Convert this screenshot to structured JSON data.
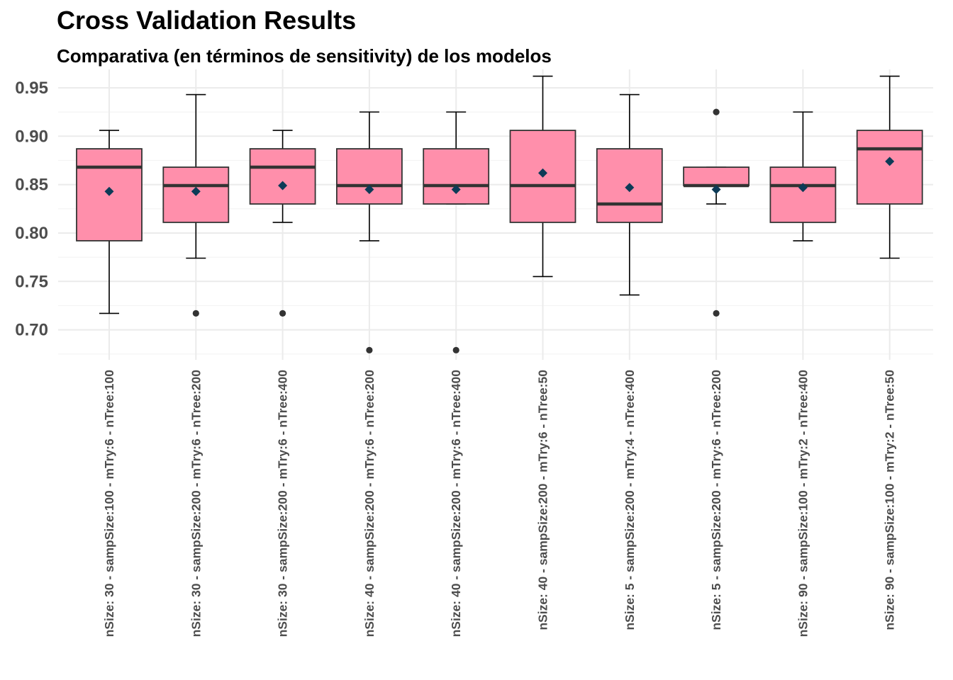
{
  "colors": {
    "box_fill": "#ff8fab",
    "box_stroke": "#333333",
    "median": "#333333",
    "whisker": "#000000",
    "outlier": "#333333",
    "mean_marker": "#0d3b57",
    "grid_major": "#ebebeb",
    "grid_minor": "#f4f4f4",
    "tick_label": "#4d4d4d"
  },
  "chart_data": {
    "type": "boxplot",
    "title": "Cross Validation Results",
    "subtitle": "Comparativa (en términos de sensitivity) de los modelos",
    "xlabel": "",
    "ylabel": "",
    "ylim": [
      0.669,
      0.969
    ],
    "yticks": [
      0.7,
      0.75,
      0.8,
      0.85,
      0.9,
      0.95
    ],
    "ytick_labels": [
      "0.70",
      "0.75",
      "0.80",
      "0.85",
      "0.90",
      "0.95"
    ],
    "grid": true,
    "legend": "none",
    "categories": [
      "nSize: 30 - sampSize:100 - mTry:6 - nTree:100",
      "nSize: 30 - sampSize:200 - mTry:6 - nTree:200",
      "nSize: 30 - sampSize:200 - mTry:6 - nTree:400",
      "nSize: 40 - sampSize:200 - mTry:6 - nTree:200",
      "nSize: 40 - sampSize:200 - mTry:6 - nTree:400",
      "nSize: 40 - sampSize:200 - mTry:6 - nTree:50",
      "nSize: 5 - sampSize:200 - mTry:4 - nTree:400",
      "nSize: 5 - sampSize:200 - mTry:6 - nTree:200",
      "nSize: 90 - sampSize:100 - mTry:2 - nTree:400",
      "nSize: 90 - sampSize:100 - mTry:2 - nTree:50"
    ],
    "boxes": [
      {
        "whisker_low": 0.717,
        "q1": 0.792,
        "median": 0.868,
        "q3": 0.887,
        "whisker_high": 0.906,
        "mean": 0.843,
        "outliers": []
      },
      {
        "whisker_low": 0.774,
        "q1": 0.811,
        "median": 0.849,
        "q3": 0.868,
        "whisker_high": 0.943,
        "mean": 0.843,
        "outliers": [
          0.717
        ]
      },
      {
        "whisker_low": 0.811,
        "q1": 0.83,
        "median": 0.868,
        "q3": 0.887,
        "whisker_high": 0.906,
        "mean": 0.849,
        "outliers": [
          0.717
        ]
      },
      {
        "whisker_low": 0.792,
        "q1": 0.83,
        "median": 0.849,
        "q3": 0.887,
        "whisker_high": 0.925,
        "mean": 0.845,
        "outliers": [
          0.679
        ]
      },
      {
        "whisker_low": 0.83,
        "q1": 0.83,
        "median": 0.849,
        "q3": 0.887,
        "whisker_high": 0.925,
        "mean": 0.845,
        "outliers": [
          0.679
        ]
      },
      {
        "whisker_low": 0.755,
        "q1": 0.811,
        "median": 0.849,
        "q3": 0.906,
        "whisker_high": 0.962,
        "mean": 0.862,
        "outliers": []
      },
      {
        "whisker_low": 0.736,
        "q1": 0.811,
        "median": 0.83,
        "q3": 0.887,
        "whisker_high": 0.943,
        "mean": 0.847,
        "outliers": []
      },
      {
        "whisker_low": 0.83,
        "q1": 0.849,
        "median": 0.849,
        "q3": 0.868,
        "whisker_high": 0.868,
        "mean": 0.845,
        "outliers": [
          0.717,
          0.925
        ]
      },
      {
        "whisker_low": 0.792,
        "q1": 0.811,
        "median": 0.849,
        "q3": 0.868,
        "whisker_high": 0.925,
        "mean": 0.847,
        "outliers": []
      },
      {
        "whisker_low": 0.774,
        "q1": 0.83,
        "median": 0.887,
        "q3": 0.906,
        "whisker_high": 0.962,
        "mean": 0.874,
        "outliers": []
      }
    ]
  }
}
